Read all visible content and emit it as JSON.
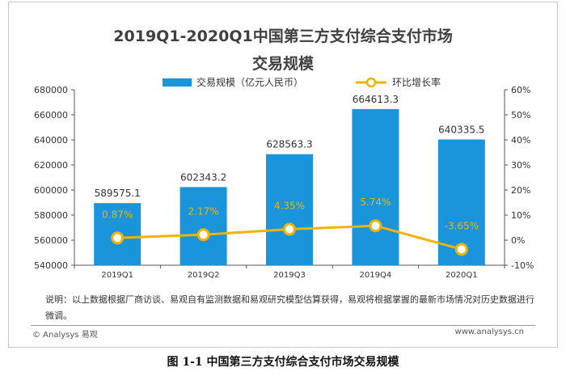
{
  "title_line1": "2019Q1-2020Q1中国第三方支付综合支付市场",
  "title_line2": "交易规模",
  "note": "说明：以上数据根据厂商访谈、易观自有监测数据和易观研究模型估算获得，易观将根据掌握的最新市场情况对历史数据进行微调。",
  "footer_left": "© Analysys 易观",
  "footer_right": "www.analysys.cn",
  "caption": "图 1-1  中国第三方支付综合支付市场交易规模",
  "colors": {
    "bar": "#1a95dc",
    "line": "#f2b200",
    "axis": "#555555"
  },
  "chart_data": {
    "type": "bar",
    "categories": [
      "2019Q1",
      "2019Q2",
      "2019Q3",
      "2019Q4",
      "2020Q1"
    ],
    "series": [
      {
        "name": "交易规模（亿元人民币）",
        "type": "bar",
        "axis": "left",
        "values": [
          589575.1,
          602343.2,
          628563.3,
          664613.3,
          640335.5
        ],
        "labels": [
          "589575.1",
          "602343.2",
          "628563.3",
          "664613.3",
          "640335.5"
        ]
      },
      {
        "name": "环比增长率",
        "type": "line",
        "axis": "right",
        "values": [
          0.87,
          2.17,
          4.35,
          5.74,
          -3.65
        ],
        "labels": [
          "0.87%",
          "2.17%",
          "4.35%",
          "5.74%",
          "-3.65%"
        ]
      }
    ],
    "ylim_left": [
      540000,
      680000
    ],
    "yticks_left": [
      "540000",
      "560000",
      "580000",
      "600000",
      "620000",
      "640000",
      "660000",
      "680000"
    ],
    "ylim_right": [
      -10,
      60
    ],
    "yticks_right": [
      "-10%",
      "0%",
      "10%",
      "20%",
      "30%",
      "40%",
      "50%",
      "60%"
    ],
    "legend_position": "top"
  }
}
